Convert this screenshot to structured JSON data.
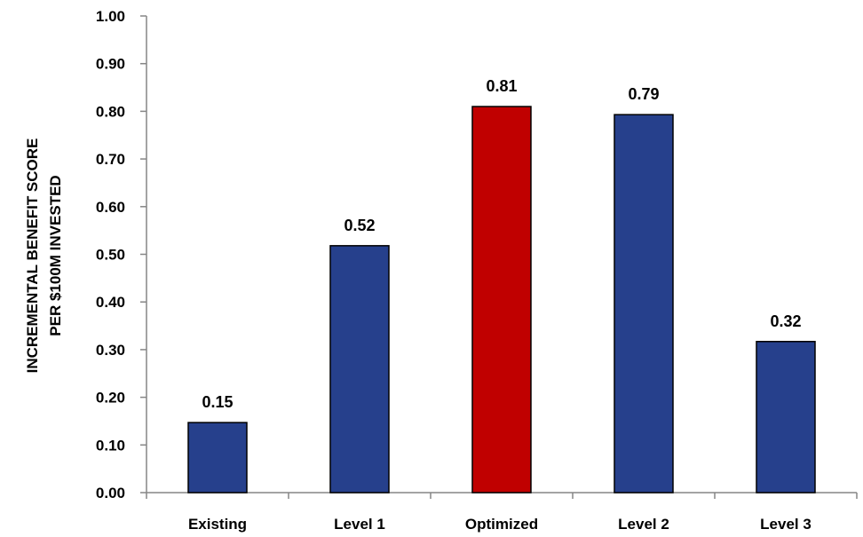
{
  "chart_data": {
    "type": "bar",
    "title": "",
    "xlabel": "",
    "ylabel_lines": [
      "INCREMENTAL BENEFIT SCORE",
      "PER $100M INVESTED"
    ],
    "categories": [
      "Existing",
      "Level 1",
      "Optimized",
      "Level 2",
      "Level 3"
    ],
    "values": [
      0.147,
      0.518,
      0.81,
      0.793,
      0.317
    ],
    "data_labels": [
      "0.15",
      "0.52",
      "0.81",
      "0.79",
      "0.32"
    ],
    "bar_colors": [
      "#26408C",
      "#26408C",
      "#C00000",
      "#26408C",
      "#26408C"
    ],
    "ylim": [
      0,
      1.0
    ],
    "yticks": [
      0,
      0.1,
      0.2,
      0.3,
      0.4,
      0.5,
      0.6,
      0.7,
      0.8,
      0.9,
      1.0
    ],
    "ytick_labels": [
      "0.00",
      "0.10",
      "0.20",
      "0.30",
      "0.40",
      "0.50",
      "0.60",
      "0.70",
      "0.80",
      "0.90",
      "1.00"
    ],
    "grid": false,
    "legend": "none"
  }
}
